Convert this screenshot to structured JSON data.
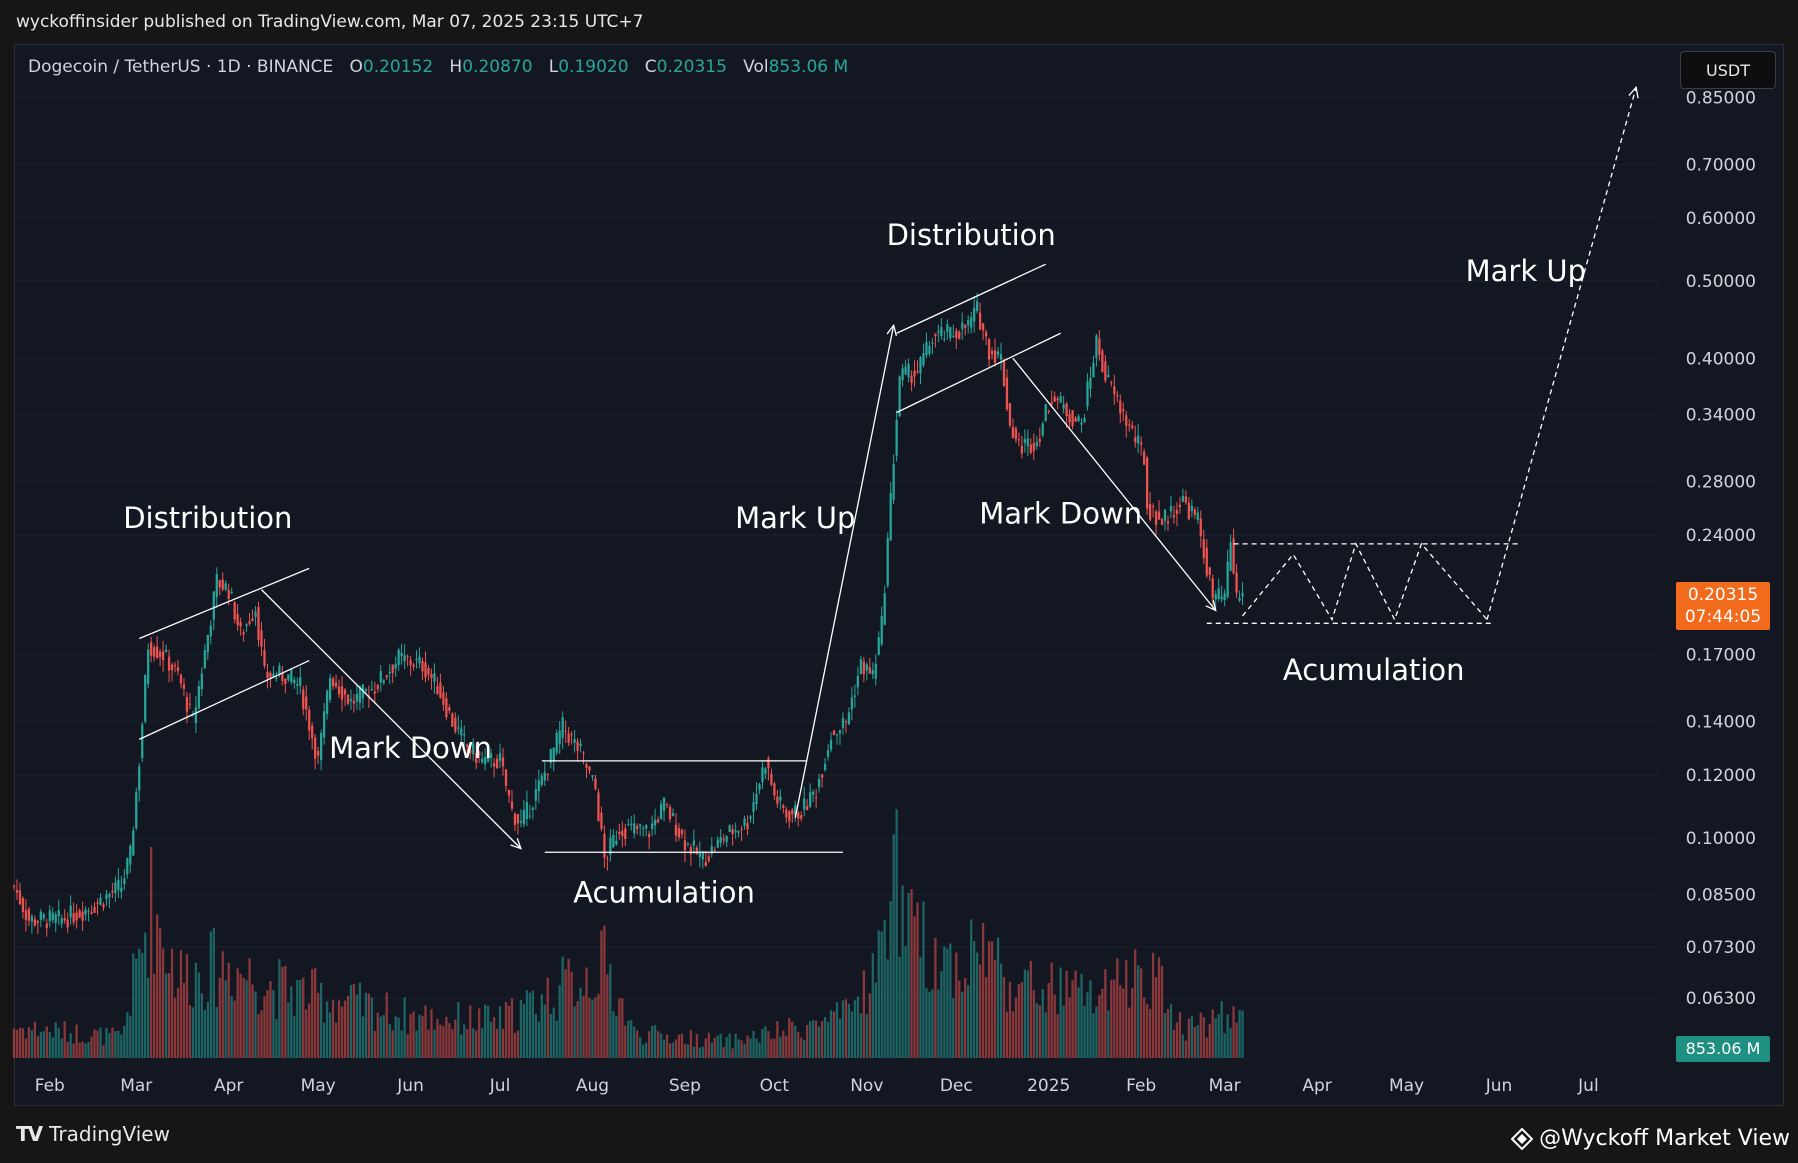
{
  "publisher_line": "wyckoffinsider published on TradingView.com, Mar 07, 2025 23:15 UTC+7",
  "header": {
    "symbol": "Dogecoin / TetherUS · 1D · BINANCE",
    "o_label": "O",
    "o_value": "0.20152",
    "h_label": "H",
    "h_value": "0.20870",
    "l_label": "L",
    "l_value": "0.19020",
    "c_label": "C",
    "c_value": "0.20315",
    "vol_label": "Vol",
    "vol_value": "853.06 M"
  },
  "currency_button": "USDT",
  "current_price": {
    "price": "0.20315",
    "countdown": "07:44:05"
  },
  "current_volume": "853.06 M",
  "footer": {
    "brand": "TradingView",
    "watermark": "@Wyckoff Market View"
  },
  "colors": {
    "background": "#131722",
    "up": "#26a69a",
    "down": "#ef5350",
    "price_tag": "#f26b1d",
    "annotation": "#ffffff"
  },
  "chart_data": {
    "type": "candlestick",
    "title": "",
    "scale": "log",
    "ylim": [
      0.055,
      0.92
    ],
    "y_ticks": [
      "0.85000",
      "0.70000",
      "0.60000",
      "0.50000",
      "0.40000",
      "0.34000",
      "0.28000",
      "0.24000",
      "0.20315",
      "0.17000",
      "0.14000",
      "0.12000",
      "0.10000",
      "0.08500",
      "0.07300",
      "0.06300"
    ],
    "y_tick_values": [
      0.85,
      0.7,
      0.6,
      0.5,
      0.4,
      0.34,
      0.28,
      0.24,
      0.20315,
      0.17,
      0.14,
      0.12,
      0.1,
      0.085,
      0.073,
      0.063
    ],
    "x_ticks": [
      "Feb",
      "Mar",
      "Apr",
      "May",
      "Jun",
      "Jul",
      "Aug",
      "Sep",
      "Oct",
      "Nov",
      "Dec",
      "2025",
      "Feb",
      "Mar",
      "Apr",
      "May",
      "Jun",
      "Jul"
    ],
    "x_tick_dates": [
      "2024-02-01",
      "2024-03-01",
      "2024-04-01",
      "2024-05-01",
      "2024-06-01",
      "2024-07-01",
      "2024-08-01",
      "2024-09-01",
      "2024-10-01",
      "2024-11-01",
      "2024-12-01",
      "2025-01-01",
      "2025-02-01",
      "2025-03-01",
      "2025-04-01",
      "2025-05-01",
      "2025-06-01",
      "2025-07-01"
    ],
    "price_path": [
      [
        "2024-01-20",
        0.087
      ],
      [
        "2024-01-25",
        0.079
      ],
      [
        "2024-02-05",
        0.079
      ],
      [
        "2024-02-15",
        0.082
      ],
      [
        "2024-02-25",
        0.087
      ],
      [
        "2024-02-28",
        0.095
      ],
      [
        "2024-03-02",
        0.125
      ],
      [
        "2024-03-05",
        0.175
      ],
      [
        "2024-03-10",
        0.17
      ],
      [
        "2024-03-15",
        0.16
      ],
      [
        "2024-03-20",
        0.14
      ],
      [
        "2024-03-25",
        0.18
      ],
      [
        "2024-03-28",
        0.21
      ],
      [
        "2024-04-01",
        0.205
      ],
      [
        "2024-04-05",
        0.18
      ],
      [
        "2024-04-10",
        0.195
      ],
      [
        "2024-04-13",
        0.16
      ],
      [
        "2024-04-20",
        0.16
      ],
      [
        "2024-04-25",
        0.155
      ],
      [
        "2024-05-01",
        0.125
      ],
      [
        "2024-05-05",
        0.16
      ],
      [
        "2024-05-12",
        0.148
      ],
      [
        "2024-05-20",
        0.155
      ],
      [
        "2024-05-28",
        0.168
      ],
      [
        "2024-06-05",
        0.165
      ],
      [
        "2024-06-10",
        0.155
      ],
      [
        "2024-06-15",
        0.14
      ],
      [
        "2024-06-20",
        0.13
      ],
      [
        "2024-06-25",
        0.125
      ],
      [
        "2024-07-01",
        0.125
      ],
      [
        "2024-07-05",
        0.108
      ],
      [
        "2024-07-08",
        0.104
      ],
      [
        "2024-07-15",
        0.118
      ],
      [
        "2024-07-22",
        0.138
      ],
      [
        "2024-07-28",
        0.128
      ],
      [
        "2024-08-02",
        0.115
      ],
      [
        "2024-08-05",
        0.094
      ],
      [
        "2024-08-10",
        0.103
      ],
      [
        "2024-08-20",
        0.102
      ],
      [
        "2024-08-25",
        0.11
      ],
      [
        "2024-09-01",
        0.099
      ],
      [
        "2024-09-07",
        0.094
      ],
      [
        "2024-09-15",
        0.101
      ],
      [
        "2024-09-22",
        0.105
      ],
      [
        "2024-09-28",
        0.125
      ],
      [
        "2024-10-01",
        0.113
      ],
      [
        "2024-10-05",
        0.107
      ],
      [
        "2024-10-10",
        0.108
      ],
      [
        "2024-10-15",
        0.115
      ],
      [
        "2024-10-20",
        0.135
      ],
      [
        "2024-10-25",
        0.14
      ],
      [
        "2024-10-30",
        0.165
      ],
      [
        "2024-11-03",
        0.16
      ],
      [
        "2024-11-06",
        0.185
      ],
      [
        "2024-11-10",
        0.3
      ],
      [
        "2024-11-12",
        0.38
      ],
      [
        "2024-11-18",
        0.385
      ],
      [
        "2024-11-23",
        0.425
      ],
      [
        "2024-11-30",
        0.43
      ],
      [
        "2024-12-05",
        0.44
      ],
      [
        "2024-12-08",
        0.46
      ],
      [
        "2024-12-12",
        0.41
      ],
      [
        "2024-12-16",
        0.4
      ],
      [
        "2024-12-19",
        0.33
      ],
      [
        "2024-12-22",
        0.31
      ],
      [
        "2024-12-28",
        0.315
      ],
      [
        "2025-01-02",
        0.36
      ],
      [
        "2025-01-08",
        0.34
      ],
      [
        "2025-01-12",
        0.33
      ],
      [
        "2025-01-17",
        0.42
      ],
      [
        "2025-01-20",
        0.38
      ],
      [
        "2025-01-26",
        0.34
      ],
      [
        "2025-02-02",
        0.3
      ],
      [
        "2025-02-03",
        0.26
      ],
      [
        "2025-02-08",
        0.25
      ],
      [
        "2025-02-15",
        0.265
      ],
      [
        "2025-02-20",
        0.25
      ],
      [
        "2025-02-25",
        0.2
      ],
      [
        "2025-03-01",
        0.2
      ],
      [
        "2025-03-03",
        0.235
      ],
      [
        "2025-03-05",
        0.2
      ],
      [
        "2025-03-07",
        0.20315
      ]
    ],
    "volume_profile": [
      [
        "2024-01-20",
        0.15
      ],
      [
        "2024-02-25",
        0.1
      ],
      [
        "2024-03-03",
        0.55
      ],
      [
        "2024-03-06",
        0.75
      ],
      [
        "2024-03-15",
        0.4
      ],
      [
        "2024-04-01",
        0.45
      ],
      [
        "2024-04-15",
        0.35
      ],
      [
        "2024-05-01",
        0.3
      ],
      [
        "2024-06-01",
        0.2
      ],
      [
        "2024-07-01",
        0.18
      ],
      [
        "2024-08-05",
        0.45
      ],
      [
        "2024-08-15",
        0.12
      ],
      [
        "2024-09-15",
        0.08
      ],
      [
        "2024-10-01",
        0.12
      ],
      [
        "2024-10-25",
        0.2
      ],
      [
        "2024-11-05",
        0.45
      ],
      [
        "2024-11-10",
        1.0
      ],
      [
        "2024-11-14",
        0.6
      ],
      [
        "2024-12-01",
        0.45
      ],
      [
        "2024-12-10",
        0.55
      ],
      [
        "2024-12-20",
        0.35
      ],
      [
        "2025-01-20",
        0.3
      ],
      [
        "2025-02-03",
        0.45
      ],
      [
        "2025-02-15",
        0.15
      ],
      [
        "2025-03-07",
        0.22
      ]
    ],
    "annotations": [
      {
        "text": "Distribution",
        "date": "2024-03-25",
        "price": 0.245
      },
      {
        "text": "Mark Down",
        "date": "2024-06-01",
        "price": 0.126
      },
      {
        "text": "Acumulation",
        "date": "2024-08-25",
        "price": 0.083
      },
      {
        "text": "Mark Up",
        "date": "2024-10-08",
        "price": 0.245
      },
      {
        "text": "Distribution",
        "date": "2024-12-06",
        "price": 0.555
      },
      {
        "text": "Mark Down",
        "date": "2025-01-05",
        "price": 0.248
      },
      {
        "text": "Acumulation",
        "date": "2025-04-20",
        "price": 0.158
      },
      {
        "text": "Mark Up",
        "date": "2025-06-10",
        "price": 0.5
      }
    ]
  }
}
